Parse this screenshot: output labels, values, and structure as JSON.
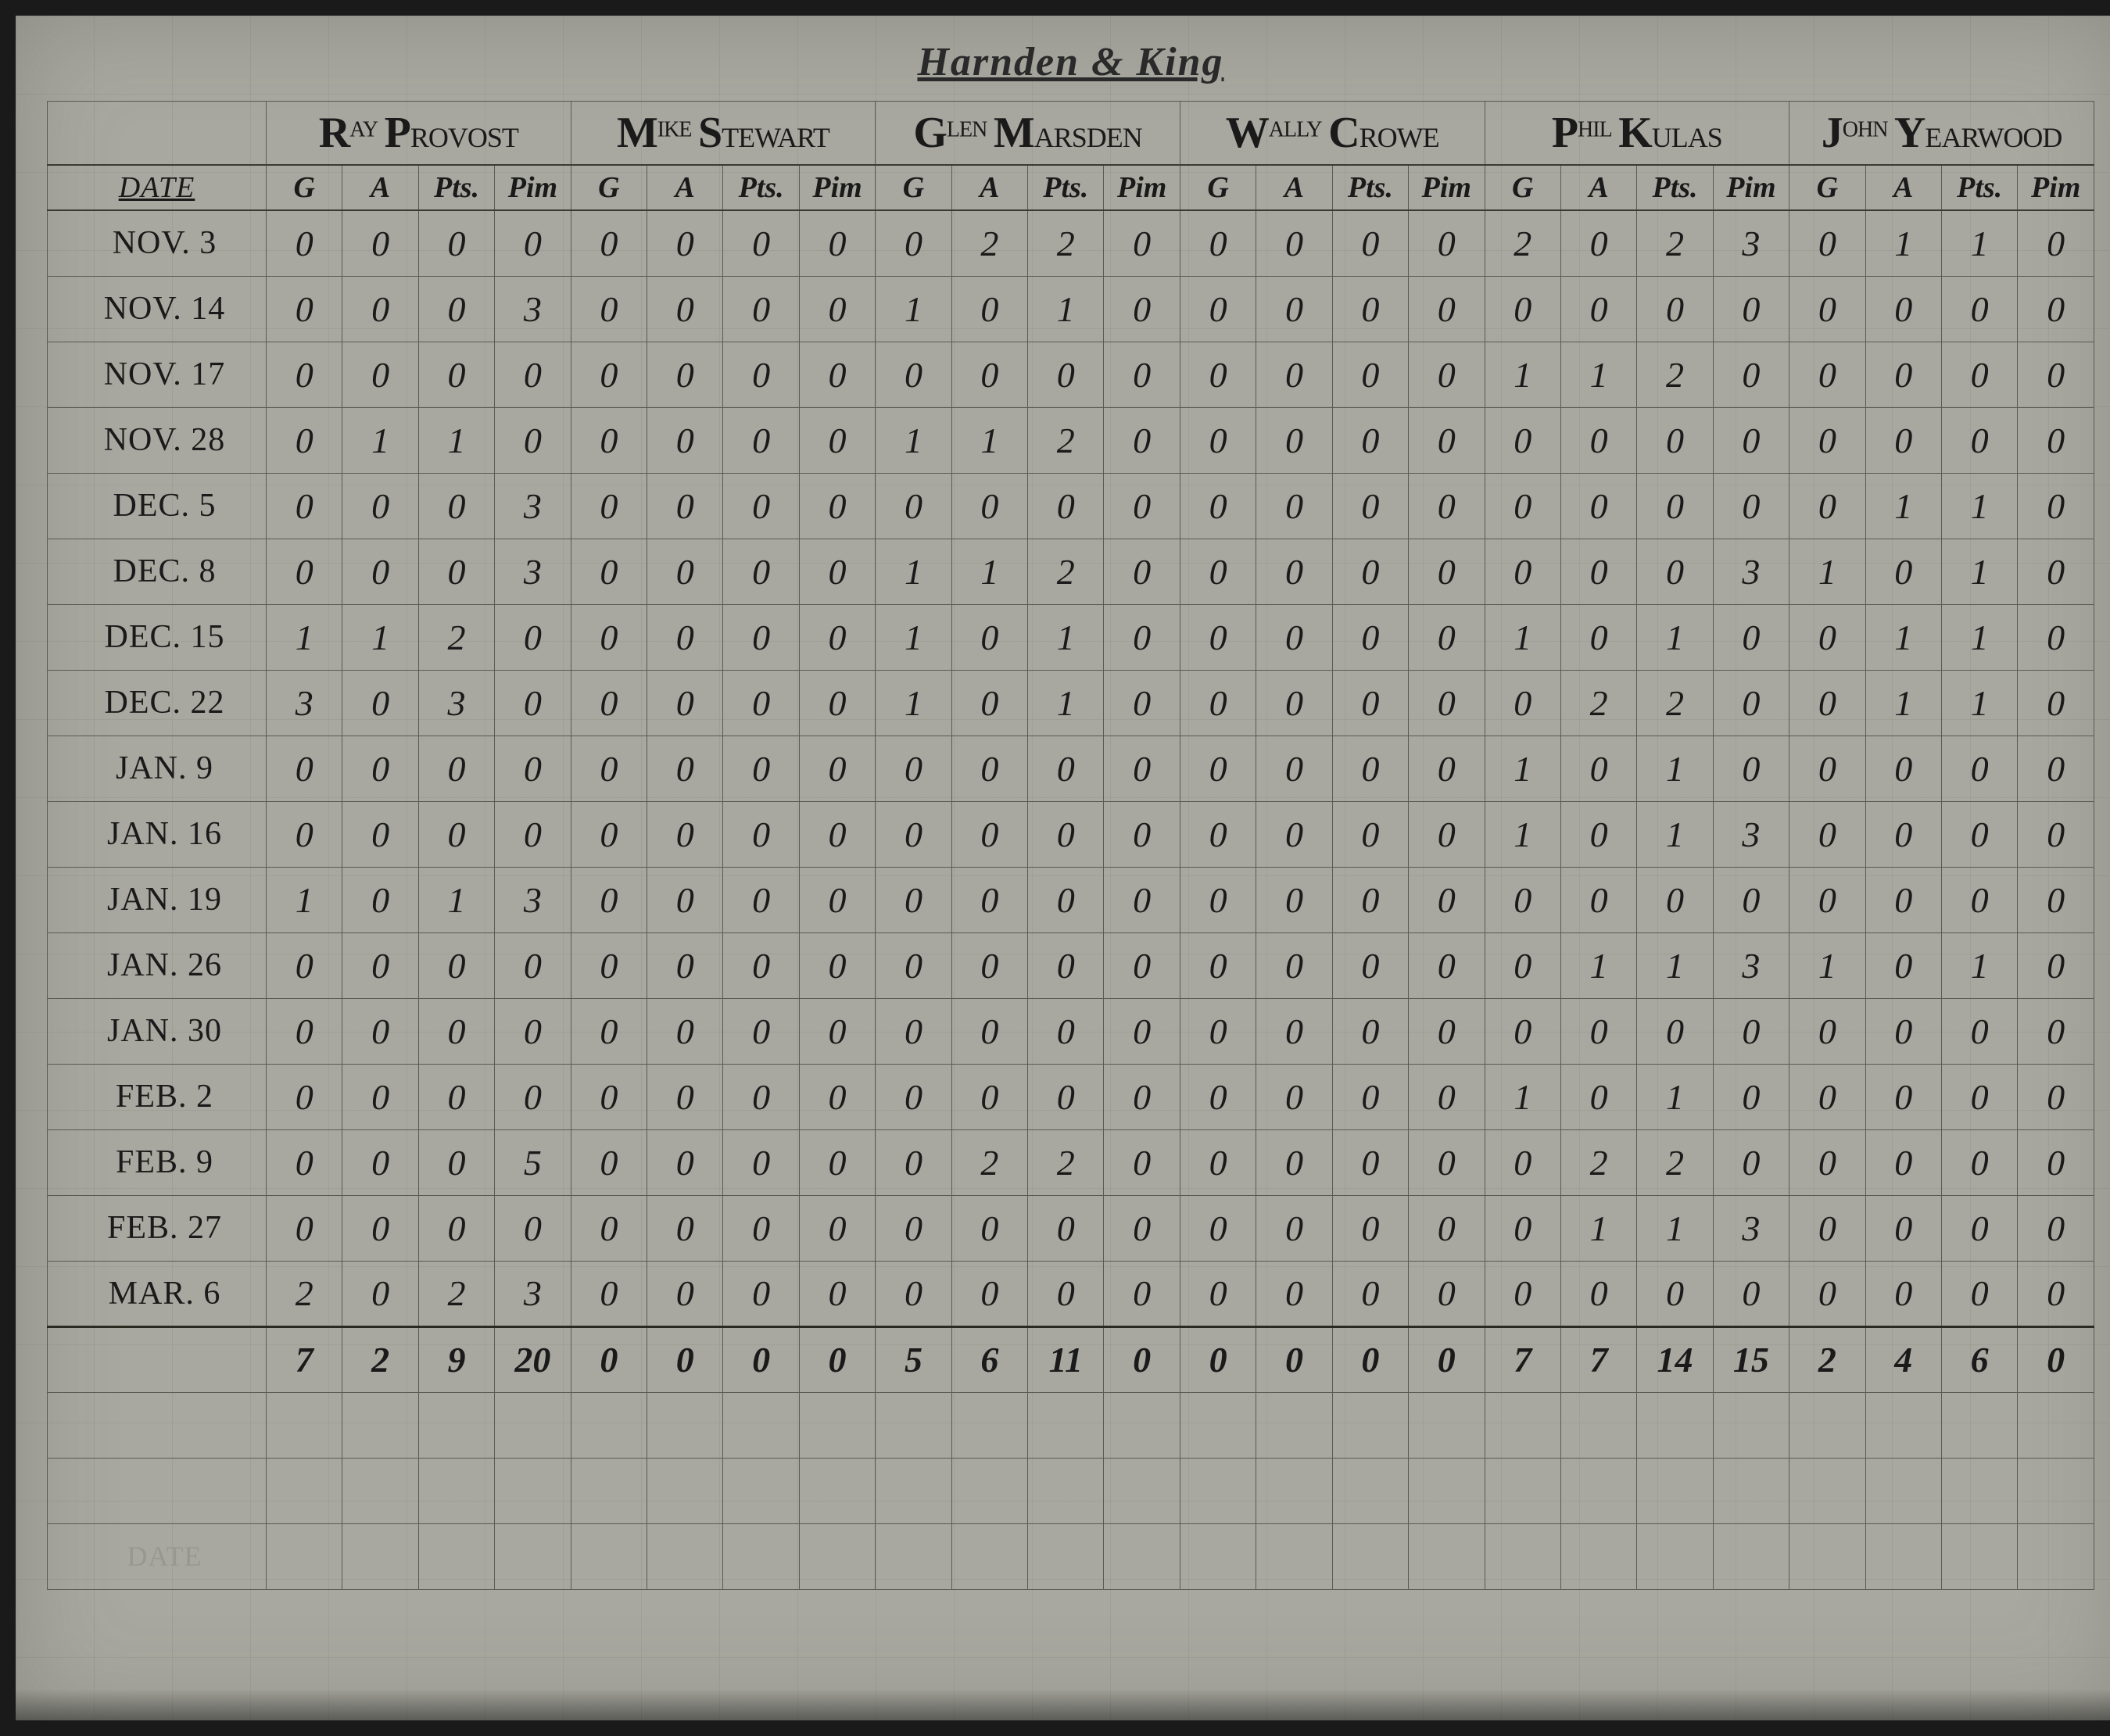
{
  "title": "Harnden & King",
  "date_label": "DATE",
  "players": [
    {
      "first_cap": "R",
      "first_rest": "AY",
      "last_cap": "P",
      "last_rest": "ROVOST"
    },
    {
      "first_cap": "M",
      "first_rest": "IKE",
      "last_cap": "S",
      "last_rest": "TEWART"
    },
    {
      "first_cap": "G",
      "first_rest": "LEN",
      "last_cap": "M",
      "last_rest": "ARSDEN"
    },
    {
      "first_cap": "W",
      "first_rest": "ALLY",
      "last_cap": "C",
      "last_rest": "ROWE"
    },
    {
      "first_cap": "P",
      "first_rest": "HIL",
      "last_cap": "K",
      "last_rest": "ULAS"
    },
    {
      "first_cap": "J",
      "first_rest": "OHN",
      "last_cap": "Y",
      "last_rest": "EARWOOD"
    }
  ],
  "stat_cols": [
    "G",
    "A",
    "Pts.",
    "Pim"
  ],
  "rows": [
    {
      "date": "NOV. 3",
      "vals": [
        "0",
        "0",
        "0",
        "0",
        "0",
        "0",
        "0",
        "0",
        "0",
        "2",
        "2",
        "0",
        "0",
        "0",
        "0",
        "0",
        "2",
        "0",
        "2",
        "3",
        "0",
        "1",
        "1",
        "0"
      ]
    },
    {
      "date": "NOV. 14",
      "vals": [
        "0",
        "0",
        "0",
        "3",
        "0",
        "0",
        "0",
        "0",
        "1",
        "0",
        "1",
        "0",
        "0",
        "0",
        "0",
        "0",
        "0",
        "0",
        "0",
        "0",
        "0",
        "0",
        "0",
        "0"
      ]
    },
    {
      "date": "NOV. 17",
      "vals": [
        "0",
        "0",
        "0",
        "0",
        "0",
        "0",
        "0",
        "0",
        "0",
        "0",
        "0",
        "0",
        "0",
        "0",
        "0",
        "0",
        "1",
        "1",
        "2",
        "0",
        "0",
        "0",
        "0",
        "0"
      ]
    },
    {
      "date": "NOV. 28",
      "vals": [
        "0",
        "1",
        "1",
        "0",
        "0",
        "0",
        "0",
        "0",
        "1",
        "1",
        "2",
        "0",
        "0",
        "0",
        "0",
        "0",
        "0",
        "0",
        "0",
        "0",
        "0",
        "0",
        "0",
        "0"
      ]
    },
    {
      "date": "DEC. 5",
      "vals": [
        "0",
        "0",
        "0",
        "3",
        "0",
        "0",
        "0",
        "0",
        "0",
        "0",
        "0",
        "0",
        "0",
        "0",
        "0",
        "0",
        "0",
        "0",
        "0",
        "0",
        "0",
        "1",
        "1",
        "0"
      ]
    },
    {
      "date": "DEC. 8",
      "vals": [
        "0",
        "0",
        "0",
        "3",
        "0",
        "0",
        "0",
        "0",
        "1",
        "1",
        "2",
        "0",
        "0",
        "0",
        "0",
        "0",
        "0",
        "0",
        "0",
        "3",
        "1",
        "0",
        "1",
        "0"
      ]
    },
    {
      "date": "DEC. 15",
      "vals": [
        "1",
        "1",
        "2",
        "0",
        "0",
        "0",
        "0",
        "0",
        "1",
        "0",
        "1",
        "0",
        "0",
        "0",
        "0",
        "0",
        "1",
        "0",
        "1",
        "0",
        "0",
        "1",
        "1",
        "0"
      ]
    },
    {
      "date": "DEC. 22",
      "vals": [
        "3",
        "0",
        "3",
        "0",
        "0",
        "0",
        "0",
        "0",
        "1",
        "0",
        "1",
        "0",
        "0",
        "0",
        "0",
        "0",
        "0",
        "2",
        "2",
        "0",
        "0",
        "1",
        "1",
        "0"
      ]
    },
    {
      "date": "JAN. 9",
      "vals": [
        "0",
        "0",
        "0",
        "0",
        "0",
        "0",
        "0",
        "0",
        "0",
        "0",
        "0",
        "0",
        "0",
        "0",
        "0",
        "0",
        "1",
        "0",
        "1",
        "0",
        "0",
        "0",
        "0",
        "0"
      ]
    },
    {
      "date": "JAN. 16",
      "vals": [
        "0",
        "0",
        "0",
        "0",
        "0",
        "0",
        "0",
        "0",
        "0",
        "0",
        "0",
        "0",
        "0",
        "0",
        "0",
        "0",
        "1",
        "0",
        "1",
        "3",
        "0",
        "0",
        "0",
        "0"
      ]
    },
    {
      "date": "JAN. 19",
      "vals": [
        "1",
        "0",
        "1",
        "3",
        "0",
        "0",
        "0",
        "0",
        "0",
        "0",
        "0",
        "0",
        "0",
        "0",
        "0",
        "0",
        "0",
        "0",
        "0",
        "0",
        "0",
        "0",
        "0",
        "0"
      ]
    },
    {
      "date": "JAN. 26",
      "vals": [
        "0",
        "0",
        "0",
        "0",
        "0",
        "0",
        "0",
        "0",
        "0",
        "0",
        "0",
        "0",
        "0",
        "0",
        "0",
        "0",
        "0",
        "1",
        "1",
        "3",
        "1",
        "0",
        "1",
        "0"
      ]
    },
    {
      "date": "JAN. 30",
      "vals": [
        "0",
        "0",
        "0",
        "0",
        "0",
        "0",
        "0",
        "0",
        "0",
        "0",
        "0",
        "0",
        "0",
        "0",
        "0",
        "0",
        "0",
        "0",
        "0",
        "0",
        "0",
        "0",
        "0",
        "0"
      ]
    },
    {
      "date": "FEB. 2",
      "vals": [
        "0",
        "0",
        "0",
        "0",
        "0",
        "0",
        "0",
        "0",
        "0",
        "0",
        "0",
        "0",
        "0",
        "0",
        "0",
        "0",
        "1",
        "0",
        "1",
        "0",
        "0",
        "0",
        "0",
        "0"
      ]
    },
    {
      "date": "FEB. 9",
      "vals": [
        "0",
        "0",
        "0",
        "5",
        "0",
        "0",
        "0",
        "0",
        "0",
        "2",
        "2",
        "0",
        "0",
        "0",
        "0",
        "0",
        "0",
        "2",
        "2",
        "0",
        "0",
        "0",
        "0",
        "0"
      ]
    },
    {
      "date": "FEB. 27",
      "vals": [
        "0",
        "0",
        "0",
        "0",
        "0",
        "0",
        "0",
        "0",
        "0",
        "0",
        "0",
        "0",
        "0",
        "0",
        "0",
        "0",
        "0",
        "1",
        "1",
        "3",
        "0",
        "0",
        "0",
        "0"
      ]
    },
    {
      "date": "MAR. 6",
      "vals": [
        "2",
        "0",
        "2",
        "3",
        "0",
        "0",
        "0",
        "0",
        "0",
        "0",
        "0",
        "0",
        "0",
        "0",
        "0",
        "0",
        "0",
        "0",
        "0",
        "0",
        "0",
        "0",
        "0",
        "0"
      ]
    }
  ],
  "totals": {
    "date": "",
    "vals": [
      "7",
      "2",
      "9",
      "20",
      "0",
      "0",
      "0",
      "0",
      "5",
      "6",
      "11",
      "0",
      "0",
      "0",
      "0",
      "0",
      "7",
      "7",
      "14",
      "15",
      "2",
      "4",
      "6",
      "0"
    ]
  },
  "ghost_date": "DATE",
  "colors": {
    "paper": "#a8a8a0",
    "ink": "#1a1a1a",
    "rule": "#5a5a50"
  }
}
